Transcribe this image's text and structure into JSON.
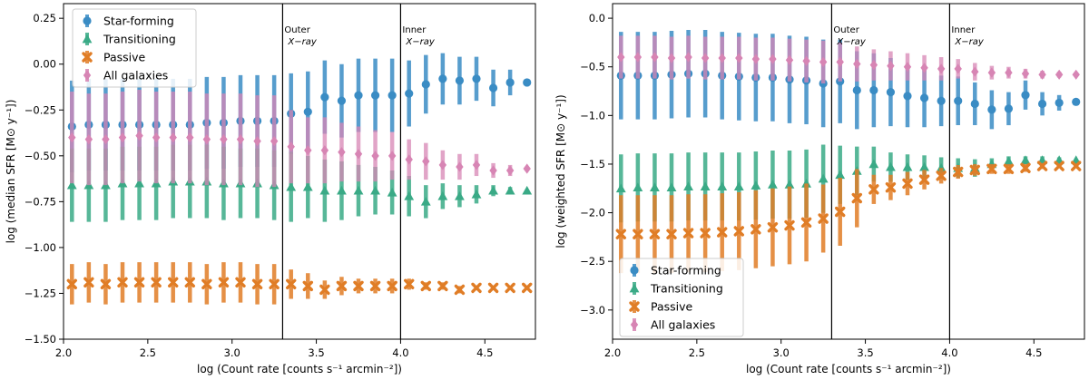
{
  "chart_data": [
    {
      "type": "scatter",
      "ylabel": "log (median SFR [M⊙ y⁻¹])",
      "xlabel": "log (Count rate [counts s⁻¹ arcmin⁻²])",
      "xlim": [
        2.0,
        4.8
      ],
      "ylim": [
        -1.5,
        0.33
      ],
      "xticks": [
        "2.0",
        "2.5",
        "3.0",
        "3.5",
        "4.0",
        "4.5"
      ],
      "yticks": [
        "−1.50",
        "−1.25",
        "−1.00",
        "−0.75",
        "−0.50",
        "−0.25",
        "0.00",
        "0.25"
      ],
      "annotations": [
        {
          "x": 3.3,
          "line1": "Outer",
          "line2": "X−ray"
        },
        {
          "x": 4.0,
          "line1": "Inner",
          "line2": "X−ray"
        }
      ],
      "legend_position": "top-left",
      "x": [
        2.05,
        2.15,
        2.25,
        2.35,
        2.45,
        2.55,
        2.65,
        2.75,
        2.85,
        2.95,
        3.05,
        3.15,
        3.25,
        3.35,
        3.45,
        3.55,
        3.65,
        3.75,
        3.85,
        3.95,
        4.05,
        4.15,
        4.25,
        4.35,
        4.45,
        4.55,
        4.65,
        4.75
      ],
      "series": [
        {
          "name": "Star-forming",
          "color": "#3a8cc4",
          "marker": "circle",
          "values": [
            -0.34,
            -0.33,
            -0.33,
            -0.33,
            -0.33,
            -0.33,
            -0.33,
            -0.33,
            -0.32,
            -0.32,
            -0.31,
            -0.31,
            -0.31,
            -0.27,
            -0.26,
            -0.18,
            -0.2,
            -0.17,
            -0.17,
            -0.17,
            -0.16,
            -0.11,
            -0.08,
            -0.09,
            -0.08,
            -0.13,
            -0.1,
            -0.1
          ],
          "err": [
            0.25,
            0.25,
            0.25,
            0.25,
            0.25,
            0.25,
            0.25,
            0.25,
            0.25,
            0.25,
            0.25,
            0.25,
            0.25,
            0.22,
            0.22,
            0.2,
            0.2,
            0.2,
            0.2,
            0.2,
            0.18,
            0.16,
            0.14,
            0.13,
            0.12,
            0.1,
            0.07,
            0.0
          ]
        },
        {
          "name": "Transitioning",
          "color": "#3aaa86",
          "marker": "triangle",
          "values": [
            -0.66,
            -0.66,
            -0.66,
            -0.65,
            -0.65,
            -0.65,
            -0.64,
            -0.64,
            -0.64,
            -0.65,
            -0.65,
            -0.65,
            -0.66,
            -0.67,
            -0.67,
            -0.69,
            -0.69,
            -0.69,
            -0.69,
            -0.7,
            -0.72,
            -0.75,
            -0.72,
            -0.72,
            -0.71,
            -0.69,
            -0.69,
            -0.69
          ],
          "err": [
            0.2,
            0.2,
            0.2,
            0.2,
            0.2,
            0.2,
            0.2,
            0.2,
            0.2,
            0.2,
            0.19,
            0.19,
            0.19,
            0.19,
            0.17,
            0.17,
            0.16,
            0.14,
            0.13,
            0.12,
            0.11,
            0.09,
            0.07,
            0.06,
            0.05,
            0.03,
            0.02,
            0.0
          ]
        },
        {
          "name": "Passive",
          "color": "#e07d26",
          "marker": "x",
          "values": [
            -1.2,
            -1.19,
            -1.2,
            -1.19,
            -1.19,
            -1.19,
            -1.19,
            -1.19,
            -1.2,
            -1.19,
            -1.19,
            -1.2,
            -1.2,
            -1.2,
            -1.21,
            -1.23,
            -1.21,
            -1.21,
            -1.21,
            -1.21,
            -1.2,
            -1.21,
            -1.21,
            -1.23,
            -1.22,
            -1.22,
            -1.22,
            -1.22
          ],
          "err": [
            0.11,
            0.11,
            0.11,
            0.11,
            0.11,
            0.11,
            0.11,
            0.11,
            0.11,
            0.11,
            0.11,
            0.11,
            0.11,
            0.08,
            0.07,
            0.05,
            0.05,
            0.04,
            0.04,
            0.04,
            0.03,
            0.02,
            0.02,
            0.02,
            0.01,
            0.0,
            0.0,
            0.0
          ]
        },
        {
          "name": "All galaxies",
          "color": "#d785b4",
          "marker": "diamond",
          "values": [
            -0.4,
            -0.41,
            -0.41,
            -0.4,
            -0.39,
            -0.4,
            -0.4,
            -0.4,
            -0.41,
            -0.41,
            -0.41,
            -0.42,
            -0.42,
            -0.45,
            -0.47,
            -0.47,
            -0.48,
            -0.49,
            -0.5,
            -0.5,
            -0.52,
            -0.53,
            -0.55,
            -0.56,
            -0.55,
            -0.58,
            -0.58,
            -0.57
          ],
          "err": [
            0.25,
            0.25,
            0.25,
            0.25,
            0.25,
            0.25,
            0.25,
            0.25,
            0.25,
            0.25,
            0.25,
            0.25,
            0.25,
            0.2,
            0.18,
            0.18,
            0.16,
            0.15,
            0.14,
            0.13,
            0.11,
            0.1,
            0.08,
            0.07,
            0.06,
            0.04,
            0.03,
            0.0
          ]
        }
      ]
    },
    {
      "type": "scatter",
      "ylabel": "log (weighted SFR [M⊙ y⁻¹])",
      "xlabel": "log (Count rate [counts s⁻¹ arcmin⁻²])",
      "xlim": [
        2.0,
        4.8
      ],
      "ylim": [
        -3.3,
        0.15
      ],
      "xticks": [
        "2.0",
        "2.5",
        "3.0",
        "3.5",
        "4.0",
        "4.5"
      ],
      "yticks": [
        "−3.0",
        "−2.5",
        "−2.0",
        "−1.5",
        "−1.0",
        "−0.5",
        "0.0"
      ],
      "annotations": [
        {
          "x": 3.3,
          "line1": "Outer",
          "line2": "X−ray"
        },
        {
          "x": 4.0,
          "line1": "Inner",
          "line2": "X−ray"
        }
      ],
      "legend_position": "bottom-left",
      "x": [
        2.05,
        2.15,
        2.25,
        2.35,
        2.45,
        2.55,
        2.65,
        2.75,
        2.85,
        2.95,
        3.05,
        3.15,
        3.25,
        3.35,
        3.45,
        3.55,
        3.65,
        3.75,
        3.85,
        3.95,
        4.05,
        4.15,
        4.25,
        4.35,
        4.45,
        4.55,
        4.65,
        4.75
      ],
      "series": [
        {
          "name": "Star-forming",
          "color": "#3a8cc4",
          "marker": "circle",
          "values": [
            -0.59,
            -0.59,
            -0.59,
            -0.58,
            -0.57,
            -0.57,
            -0.59,
            -0.6,
            -0.61,
            -0.61,
            -0.63,
            -0.64,
            -0.67,
            -0.65,
            -0.74,
            -0.74,
            -0.76,
            -0.8,
            -0.82,
            -0.85,
            -0.85,
            -0.88,
            -0.94,
            -0.93,
            -0.79,
            -0.88,
            -0.87,
            -0.86
          ],
          "err": [
            0.45,
            0.45,
            0.45,
            0.45,
            0.45,
            0.45,
            0.45,
            0.45,
            0.45,
            0.45,
            0.45,
            0.45,
            0.45,
            0.43,
            0.4,
            0.38,
            0.35,
            0.32,
            0.3,
            0.26,
            0.25,
            0.22,
            0.2,
            0.17,
            0.15,
            0.12,
            0.08,
            0.0
          ]
        },
        {
          "name": "Transitioning",
          "color": "#3aaa86",
          "marker": "triangle",
          "values": [
            -1.75,
            -1.74,
            -1.74,
            -1.74,
            -1.73,
            -1.73,
            -1.73,
            -1.73,
            -1.72,
            -1.71,
            -1.71,
            -1.7,
            -1.65,
            -1.61,
            -1.57,
            -1.5,
            -1.53,
            -1.53,
            -1.53,
            -1.54,
            -1.54,
            -1.54,
            -1.5,
            -1.47,
            -1.46,
            -1.46,
            -1.46,
            -1.46
          ],
          "err": [
            0.35,
            0.35,
            0.35,
            0.35,
            0.35,
            0.35,
            0.35,
            0.35,
            0.35,
            0.35,
            0.35,
            0.35,
            0.35,
            0.3,
            0.25,
            0.18,
            0.15,
            0.13,
            0.12,
            0.11,
            0.1,
            0.09,
            0.06,
            0.05,
            0.04,
            0.04,
            0.03,
            0.0
          ]
        },
        {
          "name": "Passive",
          "color": "#e07d26",
          "marker": "x",
          "values": [
            -2.22,
            -2.22,
            -2.22,
            -2.22,
            -2.21,
            -2.21,
            -2.2,
            -2.19,
            -2.17,
            -2.15,
            -2.13,
            -2.1,
            -2.06,
            -1.99,
            -1.85,
            -1.76,
            -1.74,
            -1.7,
            -1.66,
            -1.62,
            -1.58,
            -1.56,
            -1.55,
            -1.55,
            -1.54,
            -1.52,
            -1.52,
            -1.52
          ],
          "err": [
            0.4,
            0.4,
            0.4,
            0.4,
            0.4,
            0.4,
            0.4,
            0.4,
            0.4,
            0.4,
            0.4,
            0.4,
            0.35,
            0.35,
            0.3,
            0.15,
            0.13,
            0.12,
            0.1,
            0.08,
            0.07,
            0.06,
            0.05,
            0.05,
            0.04,
            0.03,
            0.02,
            0.0
          ]
        },
        {
          "name": "All galaxies",
          "color": "#d785b4",
          "marker": "diamond",
          "values": [
            -0.4,
            -0.4,
            -0.4,
            -0.41,
            -0.4,
            -0.41,
            -0.41,
            -0.41,
            -0.42,
            -0.42,
            -0.43,
            -0.44,
            -0.45,
            -0.45,
            -0.47,
            -0.48,
            -0.49,
            -0.5,
            -0.51,
            -0.52,
            -0.52,
            -0.55,
            -0.56,
            -0.56,
            -0.57,
            -0.58,
            -0.58,
            -0.58
          ],
          "err": [
            0.22,
            0.22,
            0.22,
            0.22,
            0.22,
            0.22,
            0.22,
            0.22,
            0.22,
            0.22,
            0.22,
            0.22,
            0.22,
            0.2,
            0.18,
            0.16,
            0.15,
            0.14,
            0.13,
            0.12,
            0.1,
            0.09,
            0.07,
            0.06,
            0.05,
            0.04,
            0.03,
            0.0
          ]
        }
      ]
    }
  ]
}
